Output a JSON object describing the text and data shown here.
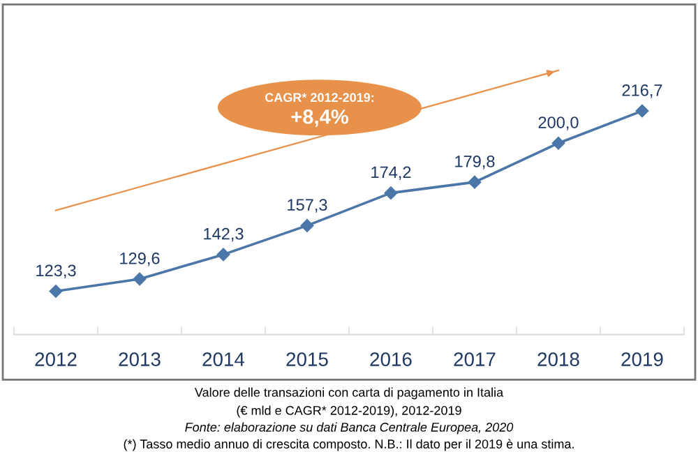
{
  "chart_data": {
    "type": "line",
    "title": "Valore delle transazioni con carta di pagamento in Italia",
    "subtitle": "(€ mld e CAGR* 2012-2019), 2012-2019",
    "categories": [
      "2012",
      "2013",
      "2014",
      "2015",
      "2016",
      "2017",
      "2018",
      "2019"
    ],
    "series": [
      {
        "color": "#4a76a8",
        "values": [
          123.3,
          129.6,
          142.3,
          157.3,
          174.2,
          179.8,
          200.0,
          216.7
        ],
        "value_labels": [
          "123,3",
          "129,6",
          "142,3",
          "157,3",
          "174,2",
          "179,8",
          "200,0",
          "216,7"
        ]
      },
      {
        "type": "line",
        "color": "#e8914a",
        "values": [
          165.2,
          177.3,
          189.4,
          null,
          null,
          225.6,
          237.7,
          null
        ],
        "marker": "none"
      }
    ],
    "marker": "diamond",
    "line_style": "solid",
    "grid": false,
    "legend": false,
    "tick_labels": "x",
    "annotations": [
      "CAGR* 2012-2019:",
      "+8,4%",
      "Fonte: elaborazione su dati Banca Centrale Europea, 2020",
      "(*) Tasso medio annuo di crescita composto. N.B.: Il dato per il 2019 è una stima."
    ]
  }
}
